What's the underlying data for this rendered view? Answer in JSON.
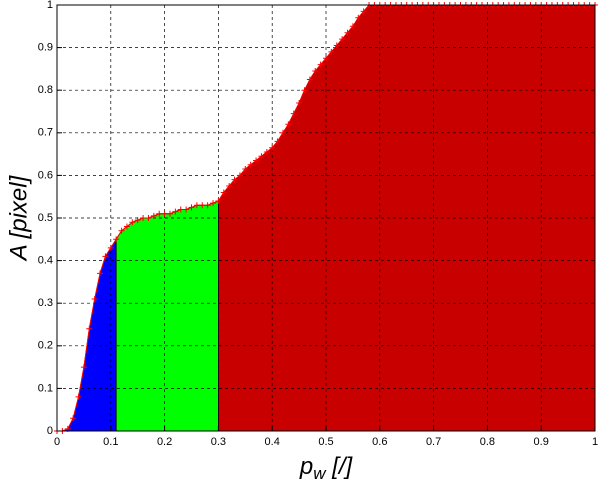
{
  "chart_data": {
    "type": "area",
    "ylabel": "A [pixel]",
    "xlabel": [
      "p",
      "w",
      " [/]"
    ],
    "x": [
      0,
      0.01,
      0.02,
      0.03,
      0.04,
      0.05,
      0.06,
      0.07,
      0.08,
      0.09,
      0.1,
      0.11,
      0.12,
      0.13,
      0.14,
      0.15,
      0.16,
      0.17,
      0.18,
      0.19,
      0.2,
      0.21,
      0.22,
      0.23,
      0.24,
      0.25,
      0.26,
      0.27,
      0.28,
      0.29,
      0.3,
      0.31,
      0.32,
      0.33,
      0.34,
      0.35,
      0.36,
      0.37,
      0.38,
      0.39,
      0.4,
      0.41,
      0.42,
      0.43,
      0.44,
      0.45,
      0.46,
      0.47,
      0.48,
      0.49,
      0.5,
      0.51,
      0.52,
      0.53,
      0.54,
      0.55,
      0.56,
      0.57,
      0.58,
      0.59,
      0.6,
      0.61,
      0.62,
      0.63,
      0.64,
      0.65,
      0.66,
      0.67,
      0.68,
      0.69,
      0.7,
      0.71,
      0.72,
      0.73,
      0.74,
      0.75,
      0.76,
      0.77,
      0.78,
      0.79,
      0.8,
      0.81,
      0.82,
      0.83,
      0.84,
      0.85,
      0.86,
      0.87,
      0.88,
      0.89,
      0.9,
      0.91,
      0.92,
      0.93,
      0.94,
      0.95,
      0.96,
      0.97,
      0.98,
      0.99,
      1
    ],
    "values": [
      0,
      0,
      0.005,
      0.03,
      0.08,
      0.15,
      0.24,
      0.31,
      0.37,
      0.41,
      0.43,
      0.45,
      0.47,
      0.48,
      0.49,
      0.495,
      0.5,
      0.5,
      0.505,
      0.51,
      0.51,
      0.51,
      0.515,
      0.52,
      0.52,
      0.525,
      0.53,
      0.53,
      0.53,
      0.535,
      0.54,
      0.56,
      0.575,
      0.59,
      0.6,
      0.615,
      0.625,
      0.635,
      0.645,
      0.655,
      0.665,
      0.68,
      0.7,
      0.72,
      0.745,
      0.77,
      0.8,
      0.825,
      0.845,
      0.86,
      0.875,
      0.89,
      0.905,
      0.92,
      0.935,
      0.95,
      0.97,
      0.985,
      1,
      1,
      1,
      1,
      1,
      1,
      1,
      1,
      1,
      1,
      1,
      1,
      1,
      1,
      1,
      1,
      1,
      1,
      1,
      1,
      1,
      1,
      1,
      1,
      1,
      1,
      1,
      1,
      1,
      1,
      1,
      1,
      1,
      1,
      1,
      1,
      1,
      1,
      1,
      1,
      1,
      1,
      1
    ],
    "marker_color": "#ff0000",
    "regions": [
      {
        "from": 0,
        "to": 0.11,
        "color": "#0000ff"
      },
      {
        "from": 0.11,
        "to": 0.3,
        "color": "#00ff00"
      },
      {
        "from": 0.3,
        "to": 1,
        "color": "#c80000"
      }
    ],
    "xlim": [
      0,
      1
    ],
    "ylim": [
      0,
      1
    ],
    "xticks": [
      0,
      0.1,
      0.2,
      0.3,
      0.4,
      0.5,
      0.6,
      0.7,
      0.8,
      0.9,
      1
    ],
    "yticks": [
      0,
      0.1,
      0.2,
      0.3,
      0.4,
      0.5,
      0.6,
      0.7,
      0.8,
      0.9,
      1
    ],
    "grid": true
  }
}
